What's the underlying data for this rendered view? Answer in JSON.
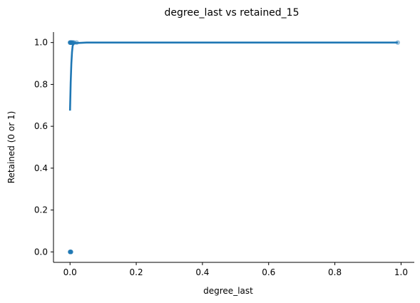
{
  "chart_data": {
    "type": "scatter",
    "title": "degree_last vs retained_15",
    "xlabel": "degree_last",
    "ylabel": "Retained (0 or 1)",
    "xlim": [
      -0.05,
      1.04
    ],
    "ylim": [
      -0.05,
      1.05
    ],
    "xticks": [
      0.0,
      0.2,
      0.4,
      0.6,
      0.8,
      1.0
    ],
    "xtick_labels": [
      "0.0",
      "0.2",
      "0.4",
      "0.6",
      "0.8",
      "1.0"
    ],
    "yticks": [
      0.0,
      0.2,
      0.4,
      0.6,
      0.8,
      1.0
    ],
    "ytick_labels": [
      "0.0",
      "0.2",
      "0.4",
      "0.6",
      "0.8",
      "1.0"
    ],
    "grid": false,
    "colors": {
      "series": "#1f77b4",
      "axis": "#000000"
    },
    "points": [
      {
        "x": 0.0,
        "y": 1
      },
      {
        "x": 0.001,
        "y": 1
      },
      {
        "x": 0.002,
        "y": 1
      },
      {
        "x": 0.003,
        "y": 1
      },
      {
        "x": 0.004,
        "y": 1
      },
      {
        "x": 0.005,
        "y": 1
      },
      {
        "x": 0.006,
        "y": 1
      },
      {
        "x": 0.0,
        "y": 1
      },
      {
        "x": 0.002,
        "y": 1
      },
      {
        "x": 0.004,
        "y": 1
      },
      {
        "x": 0.008,
        "y": 1
      },
      {
        "x": 0.01,
        "y": 1
      },
      {
        "x": 0.012,
        "y": 1
      },
      {
        "x": 0.02,
        "y": 1
      },
      {
        "x": 0.99,
        "y": 1
      },
      {
        "x": 0.0,
        "y": 0
      },
      {
        "x": 0.0005,
        "y": 0
      },
      {
        "x": 0.001,
        "y": 0
      },
      {
        "x": 0.0015,
        "y": 0
      },
      {
        "x": 0.002,
        "y": 0
      },
      {
        "x": 0.0025,
        "y": 0
      },
      {
        "x": 0.003,
        "y": 0
      }
    ],
    "fit_line": {
      "x": [
        0.0,
        0.002,
        0.004,
        0.006,
        0.008,
        0.012,
        0.05,
        0.2,
        0.4,
        0.6,
        0.8,
        0.99
      ],
      "y": [
        0.675,
        0.81,
        0.9,
        0.955,
        0.985,
        0.997,
        1.0,
        1.0,
        1.0,
        1.0,
        1.0,
        1.0
      ]
    }
  }
}
